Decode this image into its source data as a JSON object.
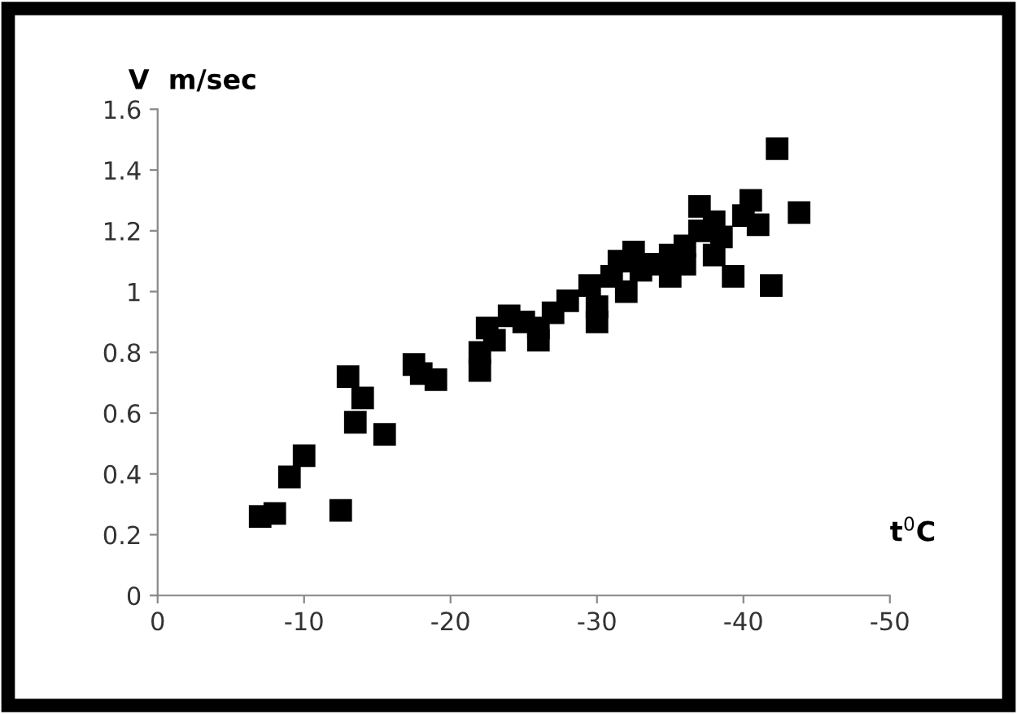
{
  "chart_data": {
    "type": "scatter",
    "ylabel": "V  m/sec",
    "xlabel": "t$^{0}$C",
    "marker": "square",
    "grid": false,
    "legend": false,
    "xlim": [
      0,
      -50
    ],
    "xticks": [
      0,
      {
        "value": -10,
        "label": "-10"
      },
      {
        "value": -20,
        "label": "-20"
      },
      {
        "value": -30,
        "label": "-30"
      },
      {
        "value": -40,
        "label": "-40"
      },
      {
        "value": -50,
        "label": "-50"
      }
    ],
    "ylim": [
      0,
      1.6
    ],
    "yticks": [
      0,
      0.2,
      0.4,
      0.6,
      0.8,
      1,
      1.2,
      1.4,
      1.6
    ],
    "series": [
      {
        "color": "#000000",
        "x": [
          -7,
          -8,
          -9,
          -10,
          -12.5,
          -13,
          -13.5,
          -14,
          -15.5,
          -17.5,
          -18,
          -19,
          -22,
          -22,
          -22.5,
          -23,
          -24,
          -25,
          -26,
          -26,
          -27,
          -28,
          -29.5,
          -30,
          -30,
          -31,
          -31.5,
          -32,
          -32.5,
          -33,
          -34,
          -35,
          -35,
          -36,
          -36,
          -37,
          -37,
          -38,
          -38,
          -38.5,
          -39.3,
          -40,
          -40.5,
          -41,
          -41.9,
          -42.3,
          -43.8
        ],
        "values": [
          0.26,
          0.27,
          0.39,
          0.46,
          0.28,
          0.72,
          0.57,
          0.65,
          0.53,
          0.76,
          0.73,
          0.71,
          0.74,
          0.8,
          0.88,
          0.84,
          0.92,
          0.9,
          0.84,
          0.88,
          0.93,
          0.97,
          1.02,
          0.95,
          0.9,
          1.05,
          1.1,
          1.0,
          1.13,
          1.07,
          1.09,
          1.12,
          1.05,
          1.15,
          1.09,
          1.28,
          1.2,
          1.12,
          1.23,
          1.18,
          1.05,
          1.25,
          1.3,
          1.22,
          1.02,
          1.47,
          1.26
        ]
      }
    ]
  }
}
